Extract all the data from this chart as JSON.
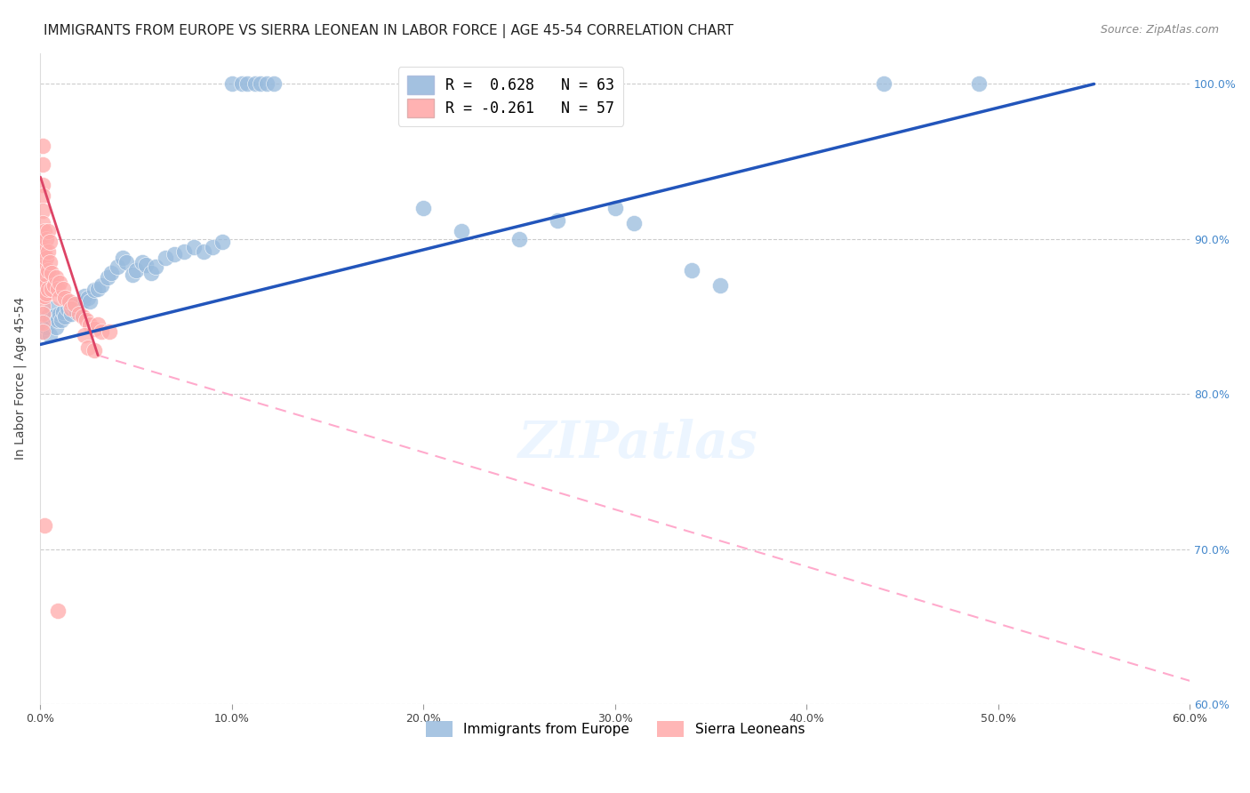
{
  "title": "IMMIGRANTS FROM EUROPE VS SIERRA LEONEAN IN LABOR FORCE | AGE 45-54 CORRELATION CHART",
  "source": "Source: ZipAtlas.com",
  "ylabel": "In Labor Force | Age 45-54",
  "r_blue": 0.628,
  "n_blue": 63,
  "r_pink": -0.261,
  "n_pink": 57,
  "legend_blue": "Immigrants from Europe",
  "legend_pink": "Sierra Leoneans",
  "xlim": [
    0.0,
    0.6
  ],
  "ylim": [
    0.6,
    1.02
  ],
  "x_ticks": [
    0.0,
    0.1,
    0.2,
    0.3,
    0.4,
    0.5,
    0.6
  ],
  "y_ticks": [
    0.6,
    0.7,
    0.8,
    0.9,
    1.0
  ],
  "y_tick_labels": [
    "60.0%",
    "70.0%",
    "80.0%",
    "90.0%",
    "100.0%"
  ],
  "x_tick_labels": [
    "0.0%",
    "10.0%",
    "20.0%",
    "30.0%",
    "40.0%",
    "50.0%",
    "60.0%"
  ],
  "blue_scatter": [
    [
      0.001,
      0.84
    ],
    [
      0.002,
      0.848
    ],
    [
      0.003,
      0.843
    ],
    [
      0.004,
      0.85
    ],
    [
      0.005,
      0.848
    ],
    [
      0.005,
      0.838
    ],
    [
      0.006,
      0.855
    ],
    [
      0.007,
      0.85
    ],
    [
      0.008,
      0.843
    ],
    [
      0.009,
      0.848
    ],
    [
      0.01,
      0.852
    ],
    [
      0.011,
      0.848
    ],
    [
      0.012,
      0.853
    ],
    [
      0.013,
      0.85
    ],
    [
      0.014,
      0.855
    ],
    [
      0.015,
      0.858
    ],
    [
      0.016,
      0.852
    ],
    [
      0.017,
      0.857
    ],
    [
      0.018,
      0.855
    ],
    [
      0.019,
      0.853
    ],
    [
      0.02,
      0.858
    ],
    [
      0.022,
      0.86
    ],
    [
      0.023,
      0.863
    ],
    [
      0.025,
      0.862
    ],
    [
      0.026,
      0.86
    ],
    [
      0.028,
      0.867
    ],
    [
      0.03,
      0.868
    ],
    [
      0.032,
      0.87
    ],
    [
      0.035,
      0.875
    ],
    [
      0.037,
      0.878
    ],
    [
      0.04,
      0.882
    ],
    [
      0.043,
      0.888
    ],
    [
      0.045,
      0.885
    ],
    [
      0.048,
      0.877
    ],
    [
      0.05,
      0.88
    ],
    [
      0.053,
      0.885
    ],
    [
      0.055,
      0.883
    ],
    [
      0.058,
      0.878
    ],
    [
      0.06,
      0.882
    ],
    [
      0.065,
      0.888
    ],
    [
      0.07,
      0.89
    ],
    [
      0.075,
      0.892
    ],
    [
      0.08,
      0.895
    ],
    [
      0.085,
      0.892
    ],
    [
      0.09,
      0.895
    ],
    [
      0.095,
      0.898
    ],
    [
      0.1,
      1.0
    ],
    [
      0.105,
      1.0
    ],
    [
      0.108,
      1.0
    ],
    [
      0.112,
      1.0
    ],
    [
      0.115,
      1.0
    ],
    [
      0.118,
      1.0
    ],
    [
      0.122,
      1.0
    ],
    [
      0.2,
      0.92
    ],
    [
      0.22,
      0.905
    ],
    [
      0.25,
      0.9
    ],
    [
      0.27,
      0.912
    ],
    [
      0.3,
      0.92
    ],
    [
      0.31,
      0.91
    ],
    [
      0.34,
      0.88
    ],
    [
      0.355,
      0.87
    ],
    [
      0.44,
      1.0
    ],
    [
      0.49,
      1.0
    ]
  ],
  "pink_scatter": [
    [
      0.001,
      0.96
    ],
    [
      0.001,
      0.948
    ],
    [
      0.001,
      0.935
    ],
    [
      0.001,
      0.928
    ],
    [
      0.001,
      0.918
    ],
    [
      0.001,
      0.91
    ],
    [
      0.001,
      0.902
    ],
    [
      0.001,
      0.895
    ],
    [
      0.001,
      0.888
    ],
    [
      0.001,
      0.882
    ],
    [
      0.001,
      0.875
    ],
    [
      0.001,
      0.87
    ],
    [
      0.001,
      0.863
    ],
    [
      0.001,
      0.857
    ],
    [
      0.001,
      0.852
    ],
    [
      0.001,
      0.846
    ],
    [
      0.001,
      0.84
    ],
    [
      0.002,
      0.905
    ],
    [
      0.002,
      0.893
    ],
    [
      0.002,
      0.882
    ],
    [
      0.002,
      0.87
    ],
    [
      0.002,
      0.863
    ],
    [
      0.003,
      0.9
    ],
    [
      0.003,
      0.888
    ],
    [
      0.003,
      0.877
    ],
    [
      0.003,
      0.865
    ],
    [
      0.004,
      0.905
    ],
    [
      0.004,
      0.892
    ],
    [
      0.004,
      0.88
    ],
    [
      0.004,
      0.868
    ],
    [
      0.005,
      0.898
    ],
    [
      0.005,
      0.885
    ],
    [
      0.006,
      0.878
    ],
    [
      0.006,
      0.868
    ],
    [
      0.007,
      0.87
    ],
    [
      0.008,
      0.875
    ],
    [
      0.009,
      0.868
    ],
    [
      0.01,
      0.872
    ],
    [
      0.01,
      0.862
    ],
    [
      0.012,
      0.868
    ],
    [
      0.013,
      0.862
    ],
    [
      0.015,
      0.86
    ],
    [
      0.016,
      0.855
    ],
    [
      0.018,
      0.858
    ],
    [
      0.02,
      0.852
    ],
    [
      0.022,
      0.85
    ],
    [
      0.024,
      0.848
    ],
    [
      0.026,
      0.845
    ],
    [
      0.028,
      0.842
    ],
    [
      0.03,
      0.845
    ],
    [
      0.032,
      0.84
    ],
    [
      0.036,
      0.84
    ],
    [
      0.002,
      0.715
    ],
    [
      0.009,
      0.66
    ],
    [
      0.023,
      0.838
    ],
    [
      0.025,
      0.83
    ],
    [
      0.028,
      0.828
    ]
  ],
  "blue_trend": [
    0.0,
    0.55,
    0.832,
    1.0
  ],
  "pink_trend_solid": [
    0.0,
    0.03,
    0.94,
    0.825
  ],
  "pink_trend_dashed": [
    0.03,
    0.6,
    0.825,
    0.615
  ],
  "title_fontsize": 11,
  "dot_size": 170,
  "blue_color": "#99BBDD",
  "pink_color": "#FFAAAA",
  "blue_line_color": "#2255BB",
  "pink_solid_color": "#DD4466",
  "pink_dashed_color": "#FFAACC",
  "background_color": "#FFFFFF",
  "grid_color": "#CCCCCC"
}
